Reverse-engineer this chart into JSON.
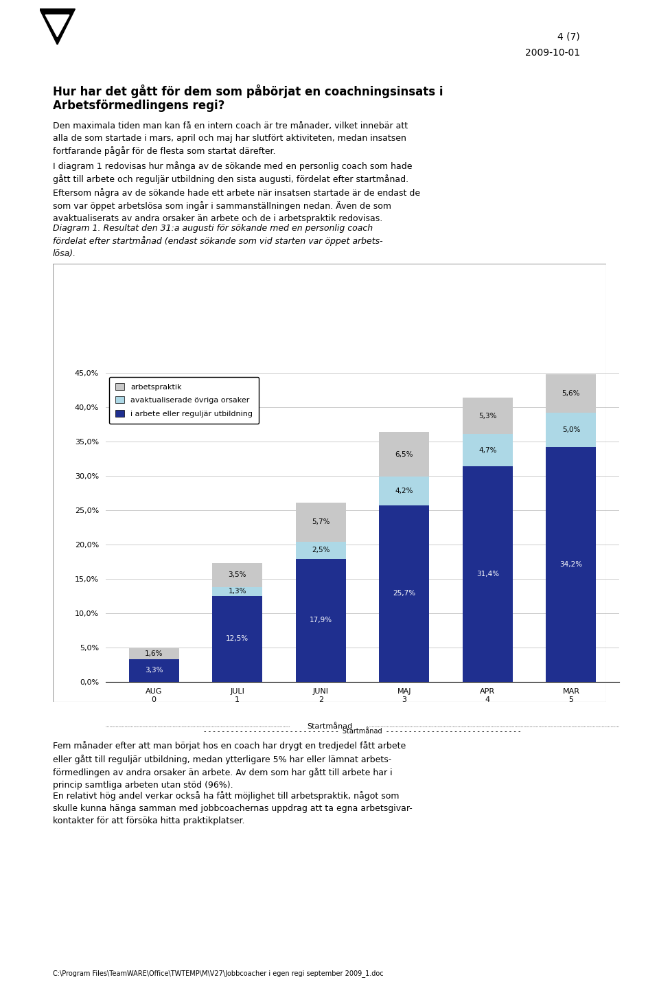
{
  "categories": [
    "AUG\n0",
    "JULI\n1",
    "JUNI\n2",
    "MAJ\n3",
    "APR\n4",
    "MAR\n5"
  ],
  "series": {
    "i arbete eller reguljär utbildning": [
      3.3,
      12.5,
      17.9,
      25.7,
      31.4,
      34.2
    ],
    "avaktualiserade övriga orsaker": [
      0.0,
      1.3,
      2.5,
      4.2,
      4.7,
      5.0
    ],
    "arbetspraktik": [
      1.6,
      3.5,
      5.7,
      6.5,
      5.3,
      5.6
    ]
  },
  "colors": {
    "i arbete eller reguljär utbildning": "#1F2F8F",
    "avaktualiserade övriga orsaker": "#ADD8E6",
    "arbetspraktik": "#C8C8C8"
  },
  "labels": {
    "i arbete eller reguljär utbildning": [
      [
        3.3,
        "3,3%"
      ],
      [
        12.5,
        "12,5%"
      ],
      [
        17.9,
        "17,9%"
      ],
      [
        25.7,
        "25,7%"
      ],
      [
        31.4,
        "31,4%"
      ],
      [
        34.2,
        "34,2%"
      ]
    ],
    "avaktualiserade övriga orsaker": [
      [
        0.0,
        ""
      ],
      [
        1.3,
        "1,3%"
      ],
      [
        2.5,
        "2,5%"
      ],
      [
        4.2,
        "4,2%"
      ],
      [
        4.7,
        "4,7%"
      ],
      [
        5.0,
        "5,0%"
      ]
    ],
    "arbetspraktik": [
      [
        1.6,
        "1,6%"
      ],
      [
        3.5,
        "3,5%"
      ],
      [
        5.7,
        "5,7%"
      ],
      [
        6.5,
        "6,5%"
      ],
      [
        5.3,
        "5,3%"
      ],
      [
        5.6,
        "5,6%"
      ]
    ]
  },
  "ylim": [
    0,
    45
  ],
  "yticks": [
    0.0,
    5.0,
    10.0,
    15.0,
    20.0,
    25.0,
    30.0,
    35.0,
    40.0,
    45.0
  ],
  "ytick_labels": [
    "0,0%",
    "5,0%",
    "10,0%",
    "15,0%",
    "20,0%",
    "25,0%",
    "30,0%",
    "35,0%",
    "40,0%",
    "45,0%"
  ],
  "xlabel_bottom": "Startmånad",
  "background_color": "#FFFFFF",
  "chart_bg": "#FFFFFF",
  "grid_color": "#CCCCCC",
  "bar_width": 0.6,
  "legend_order": [
    "arbetspraktik",
    "avaktualiserade övriga orsaker",
    "i arbete eller reguljär utbildning"
  ]
}
